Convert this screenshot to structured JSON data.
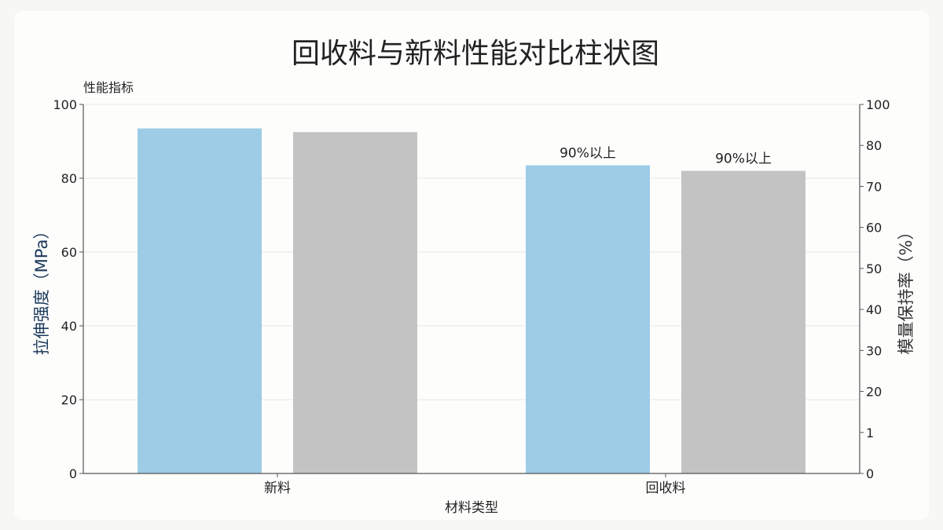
{
  "chart_data": {
    "type": "bar",
    "title": "回收料与新料性能对比柱状图",
    "corner_label": "性能指标",
    "xlabel": "材料类型",
    "ylabel": "拉伸强度（MPa）",
    "y2label": "模量保持率（%）",
    "categories": [
      "新料",
      "回收料"
    ],
    "ylim": [
      0,
      100
    ],
    "y_ticks": [
      "0",
      "20",
      "40",
      "60",
      "80",
      "100"
    ],
    "y2_ticks": [
      "0",
      "1",
      "20",
      "30",
      "40",
      "50",
      "60",
      "70",
      "80",
      "100"
    ],
    "grid": true,
    "series": [
      {
        "color": "#9ccce6",
        "values": [
          93.5,
          83.5
        ],
        "labels": [
          "",
          "90%以上"
        ]
      },
      {
        "color": "#c3c3c3",
        "values": [
          92.5,
          82
        ],
        "labels": [
          "",
          "90%以上"
        ]
      }
    ],
    "axis_color": "#555555",
    "text_color": "#222222",
    "ylabel_color": "#1d3a5c",
    "grid_color": "#e6e6e6"
  }
}
